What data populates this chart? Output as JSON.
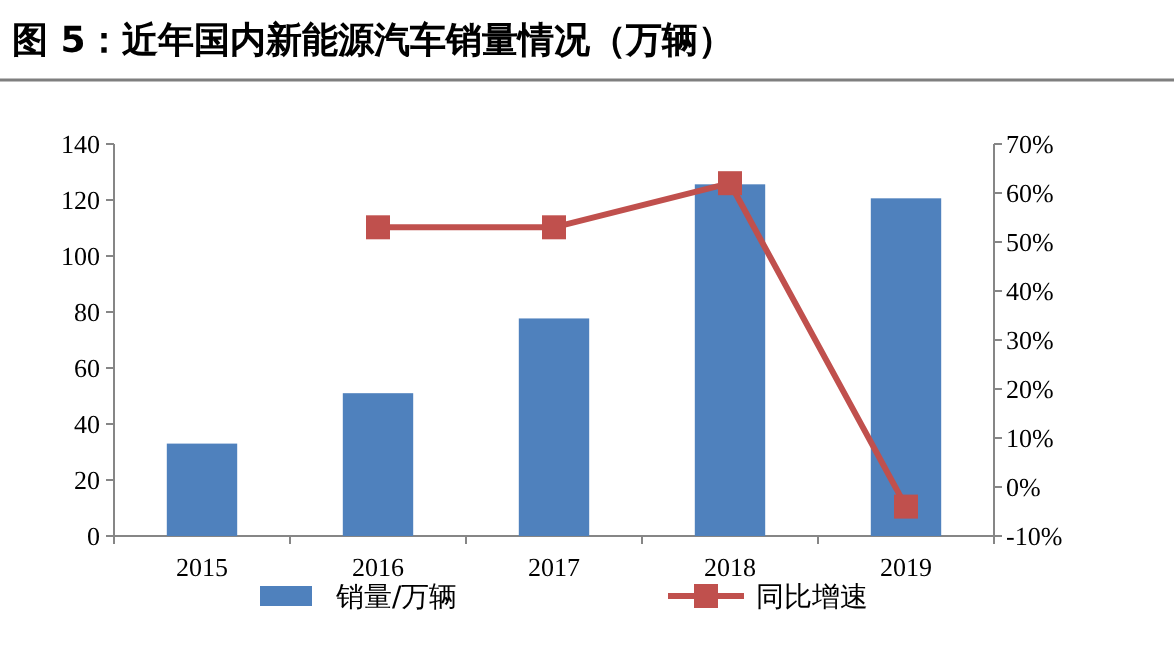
{
  "chart_data": {
    "type": "bar",
    "title": "图 5：近年国内新能源汽车销量情况（万辆）",
    "categories": [
      "2015",
      "2016",
      "2017",
      "2018",
      "2019"
    ],
    "series": [
      {
        "name": "销量/万辆",
        "color": "#4f81bd",
        "values": [
          33,
          51,
          77.7,
          125.6,
          120.6
        ]
      },
      {
        "name": "同比增速",
        "type": "line",
        "axis": "y2",
        "color": "#c0504d",
        "marker": "square",
        "values": [
          null,
          53,
          53,
          62,
          -4
        ]
      }
    ],
    "ylim": [
      0,
      140
    ],
    "yticks": [
      0,
      20,
      40,
      60,
      80,
      100,
      120,
      140
    ],
    "y2lim": [
      -10,
      70
    ],
    "y2ticks": [
      {
        "value": -10,
        "label": "-10%"
      },
      {
        "value": 0,
        "label": "0%"
      },
      {
        "value": 10,
        "label": "10%"
      },
      {
        "value": 20,
        "label": "20%"
      },
      {
        "value": 30,
        "label": "30%"
      },
      {
        "value": 40,
        "label": "40%"
      },
      {
        "value": 50,
        "label": "50%"
      },
      {
        "value": 60,
        "label": "60%"
      },
      {
        "value": 70,
        "label": "70%"
      }
    ],
    "grid": false,
    "legend": "bottom"
  }
}
